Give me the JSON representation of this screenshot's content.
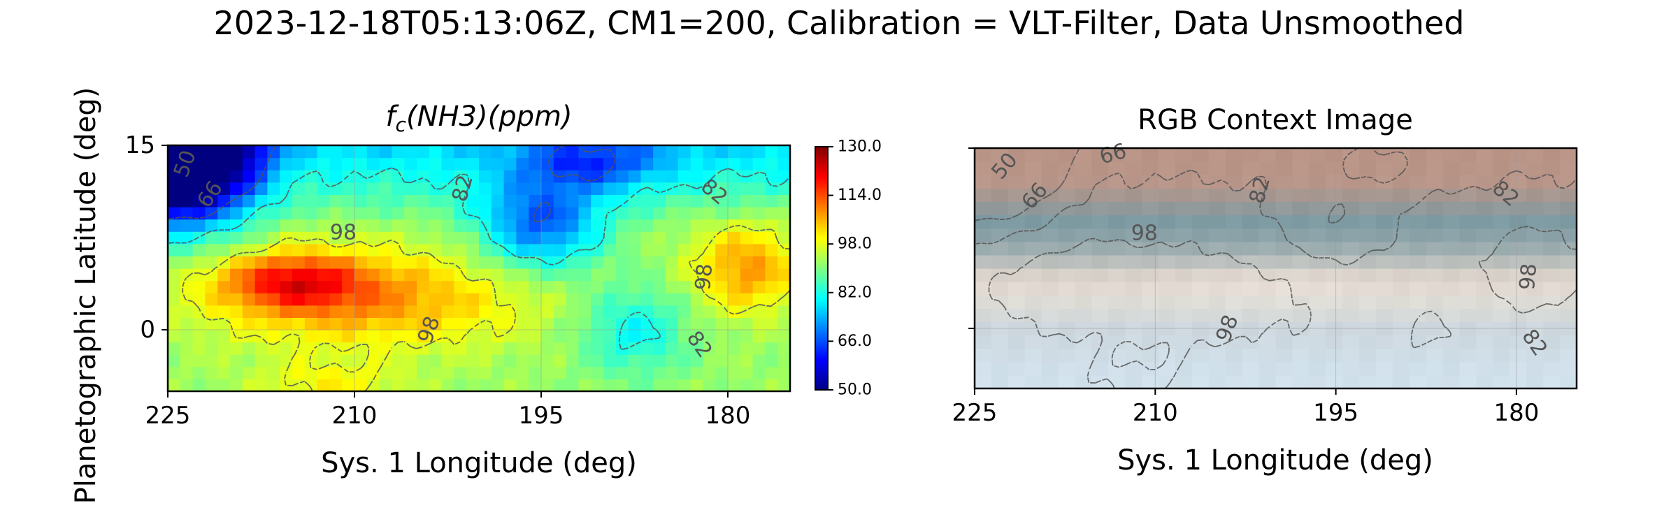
{
  "figure": {
    "suptitle": "2023-12-18T05:13:06Z, CM1=200, Calibration = VLT-Filter, Data Unsmoothed",
    "ylabel": "Planetographic Latitude (deg)"
  },
  "chart_data": [
    {
      "type": "heatmap",
      "title_base": "f",
      "title_sub": "c",
      "title_rest": "(NH3)(ppm)",
      "xlabel": "Sys. 1 Longitude (deg)",
      "ylabel": "Planetographic Latitude (deg)",
      "xlim": [
        225,
        175
      ],
      "ylim": [
        -5,
        15
      ],
      "xticks": [
        225,
        210,
        195,
        180
      ],
      "yticks": [
        0,
        15
      ],
      "colormap": "jet",
      "colorbar": {
        "vmin": 50.0,
        "vmax": 130.0,
        "ticks": [
          "130.0",
          "114.0",
          "98.0",
          "82.0",
          "66.0",
          "50.0"
        ],
        "tick_values": [
          130,
          114,
          98,
          82,
          66,
          50
        ]
      },
      "contour_levels": [
        50,
        66,
        82,
        98
      ],
      "contour_labels": [
        {
          "text": "50",
          "lon": 223.6,
          "lat": 13.5,
          "angle": -70
        },
        {
          "text": "66",
          "lon": 221.6,
          "lat": 11.0,
          "angle": -55
        },
        {
          "text": "98",
          "lon": 210.9,
          "lat": 7.9,
          "angle": 0
        },
        {
          "text": "82",
          "lon": 201.3,
          "lat": 11.5,
          "angle": -75
        },
        {
          "text": "82",
          "lon": 181.1,
          "lat": 11.2,
          "angle": 40
        },
        {
          "text": "98",
          "lon": 181.9,
          "lat": 4.3,
          "angle": -85
        },
        {
          "text": "98",
          "lon": 204.0,
          "lat": 0.0,
          "angle": -70
        },
        {
          "text": "82",
          "lon": 182.3,
          "lat": -1.2,
          "angle": 55
        }
      ],
      "field_features": [
        {
          "kind": "high",
          "lon": 209.0,
          "lat": 2.5,
          "value": 108,
          "sx": 9.0,
          "sy": 2.8
        },
        {
          "kind": "high",
          "lon": 215.0,
          "lat": 4.0,
          "value": 112,
          "sx": 4.0,
          "sy": 1.6
        },
        {
          "kind": "high",
          "lon": 178.5,
          "lat": 5.0,
          "value": 108,
          "sx": 3.0,
          "sy": 2.5
        },
        {
          "kind": "high",
          "lon": 212.0,
          "lat": -4.3,
          "value": 100,
          "sx": 4.0,
          "sy": 1.2
        },
        {
          "kind": "low",
          "lon": 223.5,
          "lat": 14.5,
          "value": 50,
          "sx": 3.5,
          "sy": 3.5
        },
        {
          "kind": "low",
          "lon": 195.0,
          "lat": 8.5,
          "value": 68,
          "sx": 3.5,
          "sy": 2.5
        },
        {
          "kind": "low",
          "lon": 187.5,
          "lat": 0.0,
          "value": 80,
          "sx": 3.0,
          "sy": 2.5
        },
        {
          "kind": "low",
          "lon": 191.0,
          "lat": 13.5,
          "value": 76,
          "sx": 4.0,
          "sy": 1.5
        }
      ]
    },
    {
      "type": "image",
      "title": "RGB Context Image",
      "xlabel": "Sys. 1 Longitude (deg)",
      "xlim": [
        225,
        175
      ],
      "ylim": [
        -5,
        15
      ],
      "xticks": [
        225,
        210,
        195,
        180
      ],
      "yticks": [
        0,
        15
      ],
      "show_ytick_labels": false,
      "contour_labels": [
        {
          "text": "50",
          "lon": 222.5,
          "lat": 13.5,
          "angle": -50
        },
        {
          "text": "66",
          "lon": 220.0,
          "lat": 11.0,
          "angle": -50
        },
        {
          "text": "66",
          "lon": 213.5,
          "lat": 14.5,
          "angle": -15
        },
        {
          "text": "98",
          "lon": 210.9,
          "lat": 7.9,
          "angle": 0
        },
        {
          "text": "82",
          "lon": 201.3,
          "lat": 11.5,
          "angle": -75
        },
        {
          "text": "82",
          "lon": 180.9,
          "lat": 11.2,
          "angle": 40
        },
        {
          "text": "98",
          "lon": 179.0,
          "lat": 4.3,
          "angle": -85
        },
        {
          "text": "98",
          "lon": 204.0,
          "lat": 0.0,
          "angle": -70
        },
        {
          "text": "82",
          "lon": 178.5,
          "lat": -1.2,
          "angle": 55
        }
      ],
      "color_bands": [
        {
          "lat": 15,
          "color": "#b99486"
        },
        {
          "lat": 12,
          "color": "#b9968a"
        },
        {
          "lat": 9,
          "color": "#7d9aa2"
        },
        {
          "lat": 7,
          "color": "#93a7ab"
        },
        {
          "lat": 4,
          "color": "#e4d8cf"
        },
        {
          "lat": 2,
          "color": "#dcdcd6"
        },
        {
          "lat": 0,
          "color": "#cdd7dd"
        },
        {
          "lat": -3,
          "color": "#d0dfe9"
        },
        {
          "lat": -5,
          "color": "#d2e2ec"
        }
      ]
    }
  ]
}
